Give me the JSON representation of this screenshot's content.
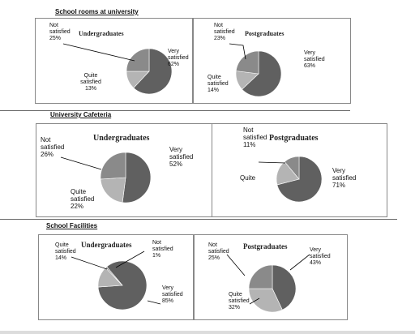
{
  "sections": [
    {
      "title": "School rooms at university"
    },
    {
      "title": "University  Cafeteria"
    },
    {
      "title": "School Facilities"
    }
  ],
  "chart_data": [
    {
      "type": "pie",
      "section": "School rooms at university",
      "title": "Undergraduates",
      "slices": [
        {
          "label_lines": [
            "Very",
            "satisfied"
          ],
          "pct": "62%",
          "value": 62,
          "color": "#606060"
        },
        {
          "label_lines": [
            "Quite",
            "satisfied"
          ],
          "pct": "13%",
          "value": 13,
          "color": "#b4b4b4"
        },
        {
          "label_lines": [
            "Not",
            "satisfied"
          ],
          "pct": "25%",
          "value": 25,
          "color": "#8a8a8a"
        }
      ]
    },
    {
      "type": "pie",
      "section": "School rooms at university",
      "title": "Postgraduates",
      "slices": [
        {
          "label_lines": [
            "Very",
            "satisfied"
          ],
          "pct": "63%",
          "value": 63,
          "color": "#606060"
        },
        {
          "label_lines": [
            "Quite",
            "satisfied"
          ],
          "pct": "14%",
          "value": 14,
          "color": "#b4b4b4"
        },
        {
          "label_lines": [
            "Not",
            "satisfied"
          ],
          "pct": "23%",
          "value": 23,
          "color": "#8a8a8a"
        }
      ]
    },
    {
      "type": "pie",
      "section": "University  Cafeteria",
      "title": "Undergraduates",
      "slices": [
        {
          "label_lines": [
            "Very",
            "satisfied"
          ],
          "pct": "52%",
          "value": 52,
          "color": "#606060"
        },
        {
          "label_lines": [
            "Quite",
            "satisfied"
          ],
          "pct": "22%",
          "value": 22,
          "color": "#b4b4b4"
        },
        {
          "label_lines": [
            "Not",
            "satisfied"
          ],
          "pct": "26%",
          "value": 26,
          "color": "#8a8a8a"
        }
      ]
    },
    {
      "type": "pie",
      "section": "University  Cafeteria",
      "title": "Postgraduates",
      "slices": [
        {
          "label_lines": [
            "Very",
            "satisfied"
          ],
          "pct": "71%",
          "value": 71,
          "color": "#606060"
        },
        {
          "label_lines": [
            "Quite"
          ],
          "pct": "",
          "value": 18,
          "color": "#b4b4b4"
        },
        {
          "label_lines": [
            "Not",
            "satisfied"
          ],
          "pct": "11%",
          "value": 11,
          "color": "#8a8a8a"
        }
      ]
    },
    {
      "type": "pie",
      "section": "School Facilities",
      "title": "Undergraduates",
      "slices": [
        {
          "label_lines": [
            "Very",
            "satisfied"
          ],
          "pct": "85%",
          "value": 85,
          "color": "#606060"
        },
        {
          "label_lines": [
            "Quite",
            "satisfied"
          ],
          "pct": "14%",
          "value": 14,
          "color": "#b4b4b4"
        },
        {
          "label_lines": [
            "Not",
            "satisfied"
          ],
          "pct": "1%",
          "value": 1,
          "color": "#8a8a8a"
        }
      ]
    },
    {
      "type": "pie",
      "section": "School Facilities",
      "title": "Postgraduates",
      "slices": [
        {
          "label_lines": [
            "Very",
            "satisfied"
          ],
          "pct": "43%",
          "value": 43,
          "color": "#606060"
        },
        {
          "label_lines": [
            "Quite",
            "satisfied"
          ],
          "pct": "32%",
          "value": 32,
          "color": "#b4b4b4"
        },
        {
          "label_lines": [
            "Not",
            "satisfied"
          ],
          "pct": "25%",
          "value": 25,
          "color": "#8a8a8a"
        }
      ]
    }
  ]
}
